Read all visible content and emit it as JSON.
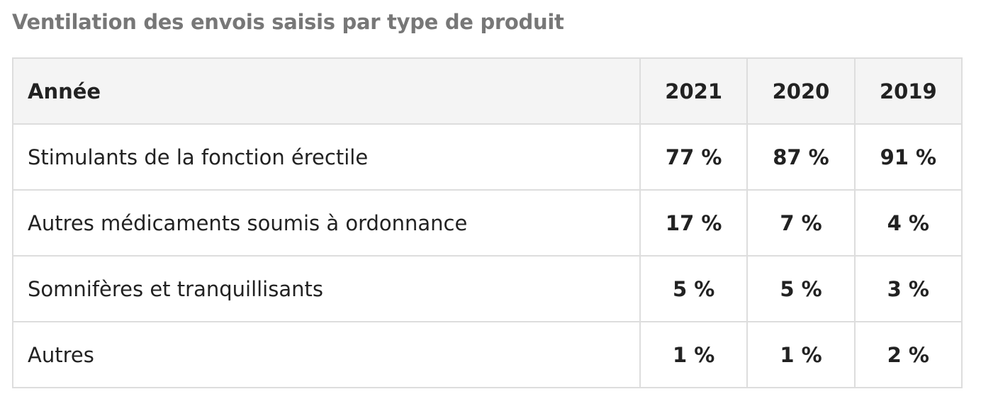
{
  "title": "Ventilation des envois saisis par type de produit",
  "table": {
    "header": [
      "Année",
      "2021",
      "2020",
      "2019"
    ],
    "rows": [
      [
        "Stimulants de la fonction érectile",
        "77 %",
        "87 %",
        "91 %"
      ],
      [
        "Autres médicaments soumis à ordonnance",
        "17 %",
        "7 %",
        "4 %"
      ],
      [
        "Somnifères et tranquillisants",
        "5 %",
        "5 %",
        "3 %"
      ],
      [
        "Autres",
        "1 %",
        "1 %",
        "2 %"
      ]
    ]
  }
}
